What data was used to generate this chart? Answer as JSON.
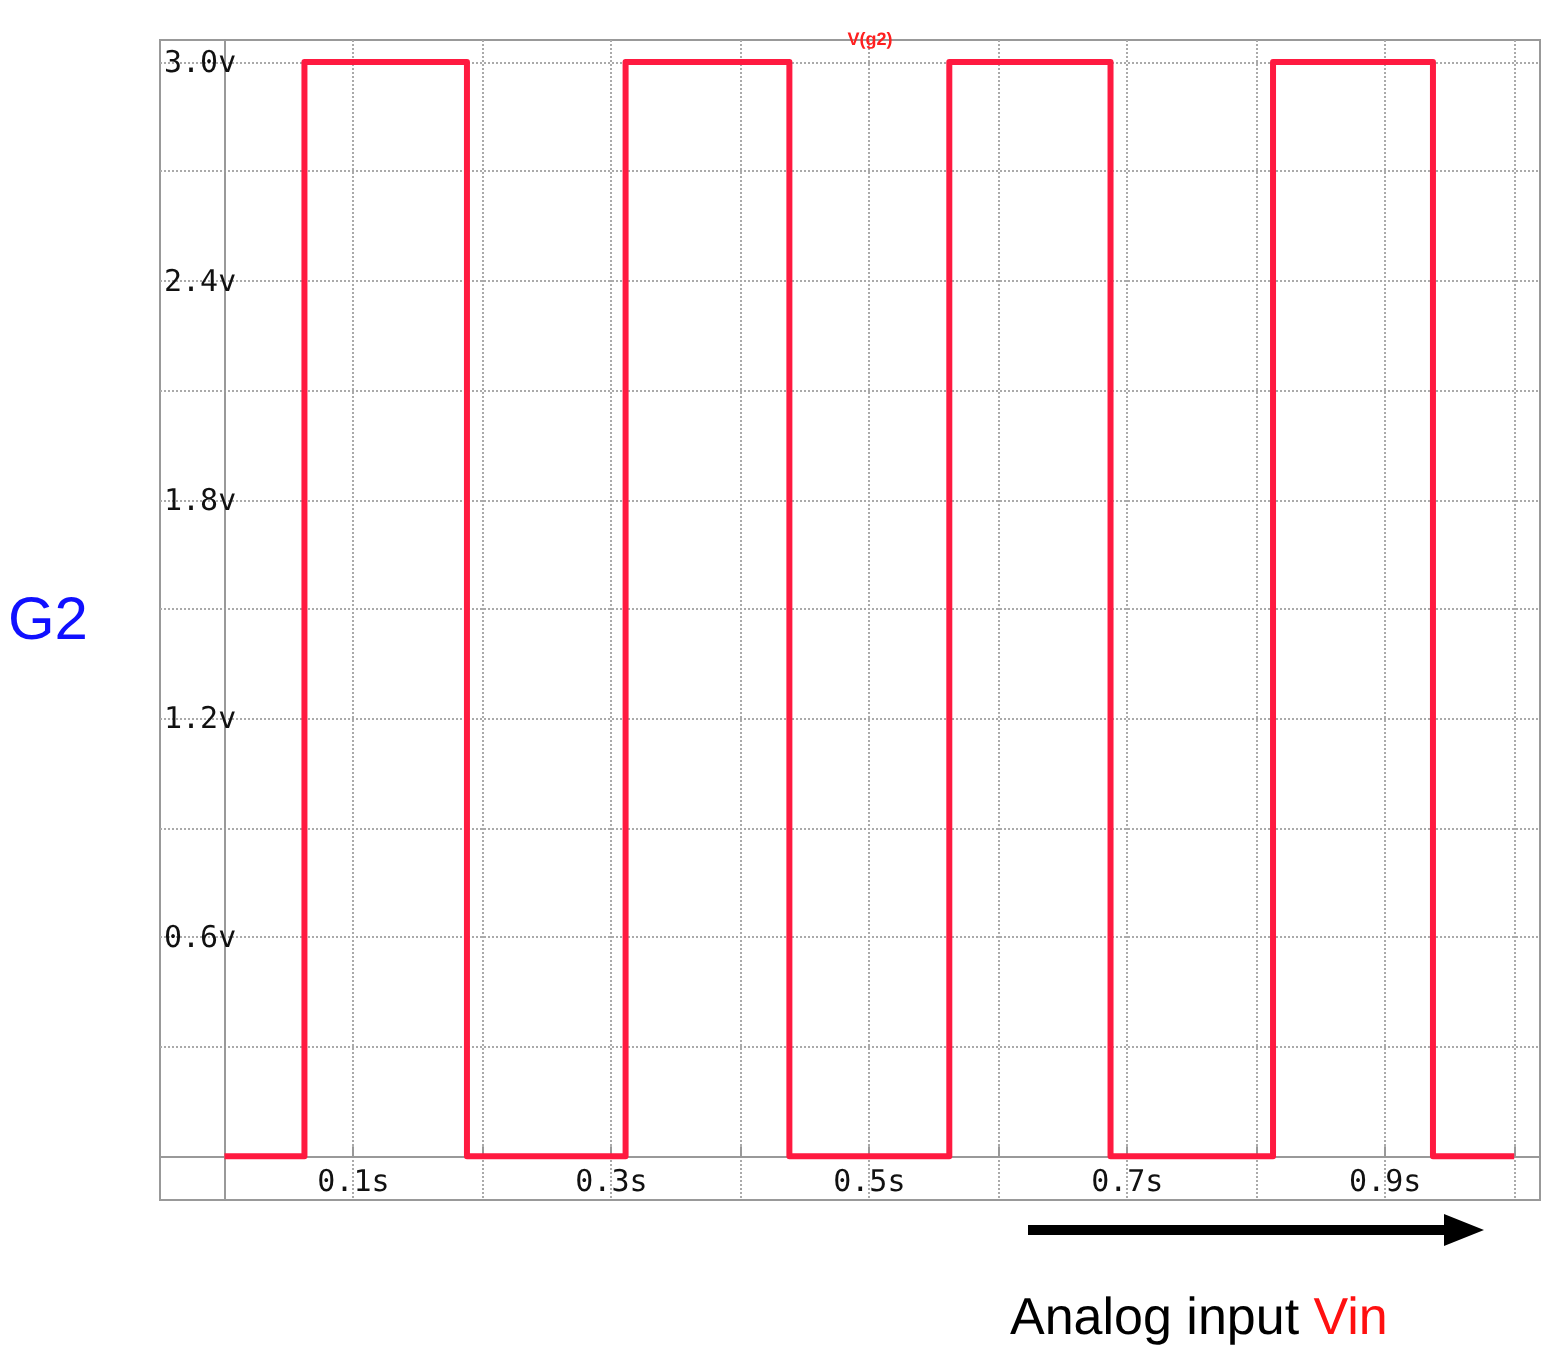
{
  "chart_data": {
    "type": "step",
    "title": "V(g2)",
    "ylabel": "G2",
    "xlabel": "Analog input Vin",
    "x": [
      0,
      0.062,
      0.188,
      0.311,
      0.438,
      0.562,
      0.687,
      0.813,
      0.937,
      1.0
    ],
    "series": [
      {
        "color": "#ff1a40",
        "values": [
          0,
          3,
          0,
          3,
          0,
          3,
          0,
          3,
          0,
          0
        ]
      }
    ],
    "xlim": [
      -0.05,
      1.02
    ],
    "xticks": [
      {
        "value": 0,
        "label": null
      },
      {
        "value": 0.1,
        "label": "0.1s"
      },
      {
        "value": 0.2,
        "label": null
      },
      {
        "value": 0.3,
        "label": "0.3s"
      },
      {
        "value": 0.4,
        "label": null
      },
      {
        "value": 0.5,
        "label": "0.5s"
      },
      {
        "value": 0.6,
        "label": null
      },
      {
        "value": 0.7,
        "label": "0.7s"
      },
      {
        "value": 0.8,
        "label": null
      },
      {
        "value": 0.9,
        "label": "0.9s"
      },
      {
        "value": 1.0,
        "label": null
      }
    ],
    "ylim": [
      -0.12,
      3.06
    ],
    "yticks": [
      {
        "value": 0,
        "label": null
      },
      {
        "value": 0.3,
        "label": null
      },
      {
        "value": 0.6,
        "label": "0.6v"
      },
      {
        "value": 0.9,
        "label": null
      },
      {
        "value": 1.2,
        "label": "1.2v"
      },
      {
        "value": 1.5,
        "label": null
      },
      {
        "value": 1.8,
        "label": "1.8v"
      },
      {
        "value": 2.1,
        "label": null
      },
      {
        "value": 2.4,
        "label": "2.4v"
      },
      {
        "value": 2.7,
        "label": null
      },
      {
        "value": 3.0,
        "label": "3.0v"
      }
    ],
    "grid": true
  }
}
